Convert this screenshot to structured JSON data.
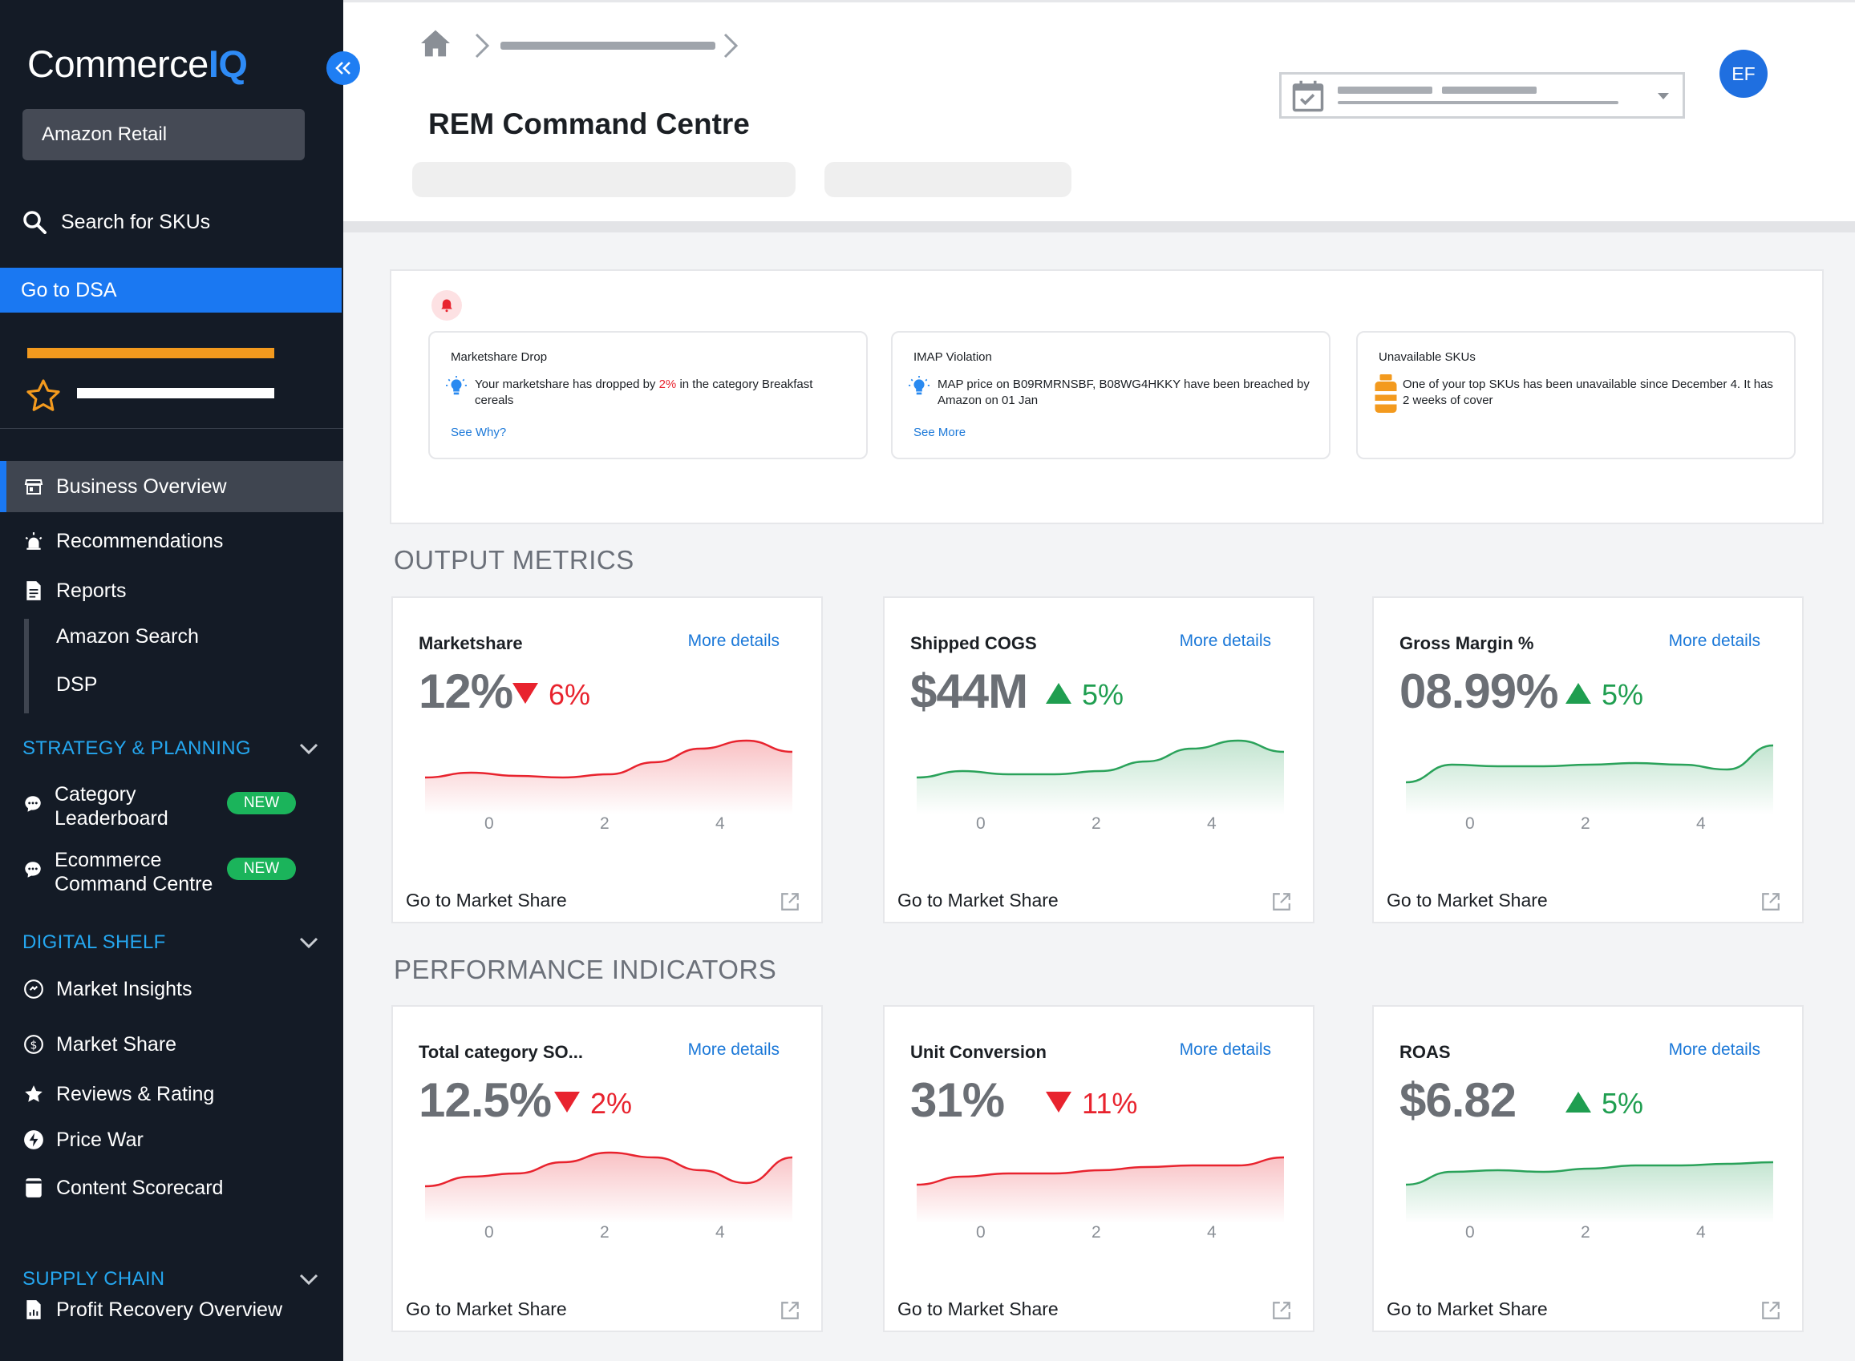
{
  "app": {
    "logo_main": "Commerce",
    "logo_accent": "IQ",
    "account": "Amazon Retail"
  },
  "sidebar": {
    "search_label": "Search for SKUs",
    "dsa_label": "Go to DSA",
    "nav": {
      "business_overview": "Business Overview",
      "recommendations": "Recommendations",
      "reports": "Reports",
      "amazon_search": "Amazon Search",
      "dsp": "DSP"
    },
    "strategy": {
      "heading": "STRATEGY & PLANNING",
      "category_leaderboard_1": "Category",
      "category_leaderboard_2": "Leaderboard",
      "ecommerce_cc_1": "Ecommerce",
      "ecommerce_cc_2": "Command Centre",
      "new_badge": "NEW"
    },
    "digital_shelf": {
      "heading": "DIGITAL SHELF",
      "market_insights": "Market Insights",
      "market_share": "Market Share",
      "reviews_rating": "Reviews & Rating",
      "price_war": "Price War",
      "content_scorecard": "Content Scorecard"
    },
    "supply_chain": {
      "heading": "SUPPLY CHAIN",
      "profit_recovery": "Profit Recovery Overview"
    }
  },
  "header": {
    "title": "REM Command Centre",
    "avatar_initials": "EF"
  },
  "alerts": [
    {
      "title": "Marketshare Drop",
      "text_before": "Your marketshare has dropped by ",
      "highlight": "2%",
      "text_after": " in the category Breakfast cereals",
      "link": "See Why?"
    },
    {
      "title": "IMAP Violation",
      "text": "MAP price on B09RMRNSBF, B08WG4HKKY have been breached by Amazon on 01 Jan",
      "link": "See More"
    },
    {
      "title": "Unavailable SKUs",
      "text": "One of your top SKUs has been unavailable since December 4. It has 2 weeks of cover"
    }
  ],
  "sections": {
    "output": "OUTPUT METRICS",
    "performance": "PERFORMANCE INDICATORS"
  },
  "colors": {
    "accent": "#1a78f2",
    "negative": "#e8232e",
    "positive": "#1f9e50",
    "warning": "#f39a1e"
  },
  "metrics": [
    {
      "title": "Marketshare",
      "value": "12%",
      "delta": "6%",
      "direction": "down",
      "more": "More details",
      "footer": "Go to Market Share",
      "ticks": [
        "0",
        "2",
        "4"
      ],
      "trend": [
        0.36,
        0.42,
        0.38,
        0.36,
        0.4,
        0.55,
        0.72,
        0.82,
        0.68
      ]
    },
    {
      "title": "Shipped COGS",
      "value": "$44M",
      "delta": "5%",
      "direction": "up",
      "more": "More details",
      "footer": "Go to Market Share",
      "ticks": [
        "0",
        "2",
        "4"
      ],
      "trend": [
        0.36,
        0.44,
        0.4,
        0.4,
        0.44,
        0.56,
        0.72,
        0.82,
        0.68
      ]
    },
    {
      "title": "Gross Margin %",
      "value": "08.99%",
      "delta": "5%",
      "direction": "up",
      "more": "More details",
      "footer": "Go to Market Share",
      "ticks": [
        "0",
        "2",
        "4"
      ],
      "trend": [
        0.3,
        0.52,
        0.5,
        0.5,
        0.52,
        0.54,
        0.52,
        0.46,
        0.76
      ]
    },
    {
      "title": "Total category SO...",
      "value": "12.5%",
      "delta": "2%",
      "direction": "down",
      "more": "More details",
      "footer": "Go to Market Share",
      "ticks": [
        "0",
        "2",
        "4"
      ],
      "trend": [
        0.36,
        0.48,
        0.52,
        0.66,
        0.78,
        0.72,
        0.56,
        0.4,
        0.72
      ]
    },
    {
      "title": "Unit Conversion",
      "value": "31%",
      "delta": "11%",
      "direction": "down",
      "more": "More details",
      "footer": "Go to Market Share",
      "ticks": [
        "0",
        "2",
        "4"
      ],
      "trend": [
        0.38,
        0.48,
        0.52,
        0.52,
        0.56,
        0.6,
        0.62,
        0.62,
        0.72
      ]
    },
    {
      "title": "ROAS",
      "value": "$6.82",
      "delta": "5%",
      "direction": "up",
      "more": "More details",
      "footer": "Go to Market Share",
      "ticks": [
        "0",
        "2",
        "4"
      ],
      "trend": [
        0.38,
        0.54,
        0.56,
        0.54,
        0.58,
        0.62,
        0.62,
        0.64,
        0.66
      ]
    }
  ]
}
